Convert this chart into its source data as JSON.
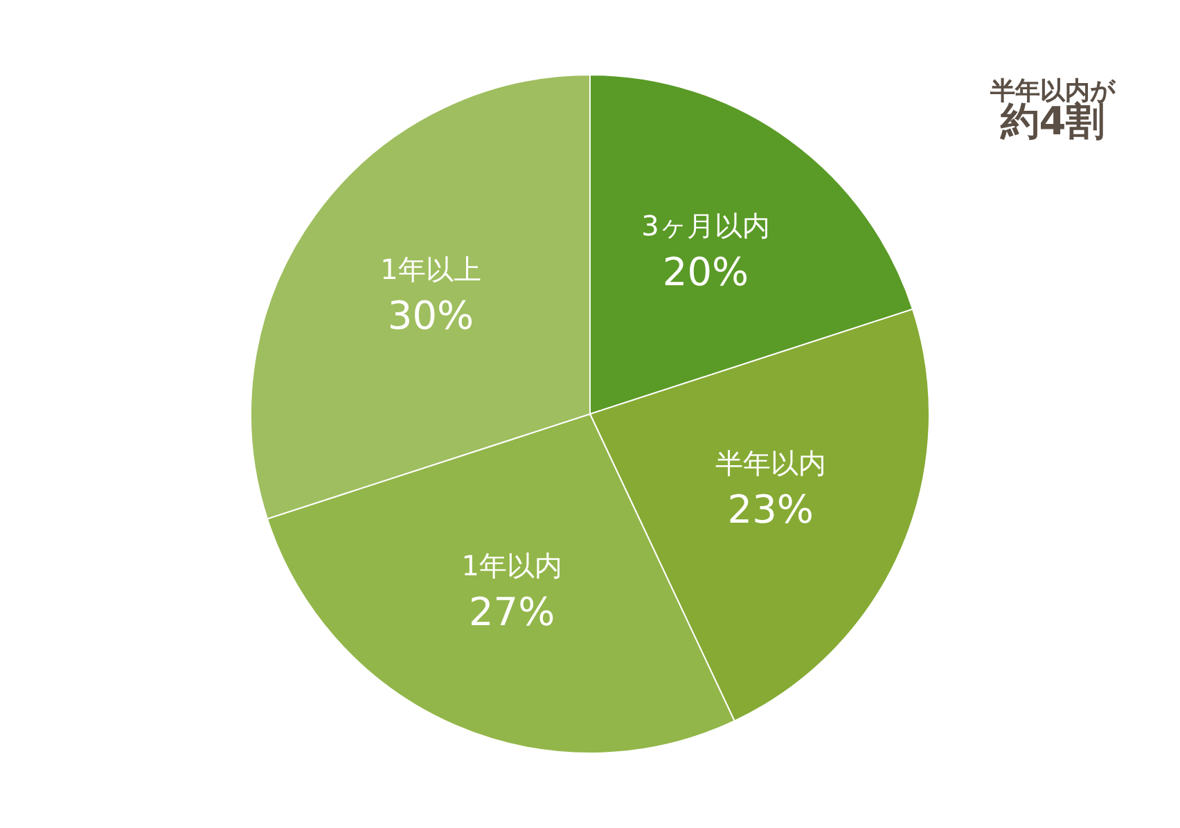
{
  "chart_data": {
    "type": "pie",
    "categories": [
      "3ヶ月以内",
      "半年以内",
      "1年以内",
      "1年以上"
    ],
    "values": [
      20,
      23,
      27,
      30
    ],
    "value_labels": [
      "20%",
      "23%",
      "27%",
      "30%"
    ],
    "colors": [
      "#5a9a26",
      "#86aa34",
      "#92b649",
      "#9fbe5f"
    ],
    "annotations": [
      "半年以内が",
      "約4割"
    ]
  }
}
